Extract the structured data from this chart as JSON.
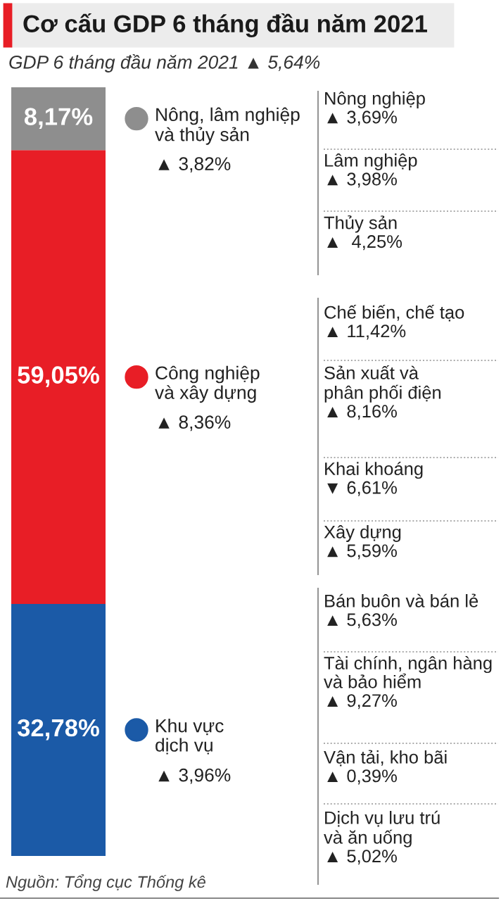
{
  "chart_data": {
    "type": "bar",
    "stacked": true,
    "title": "Cơ cấu GDP 6 tháng đầu năm 2021",
    "subtitle": "GDP 6 tháng đầu năm 2021 ▲ 5,64%",
    "categories": [
      null
    ],
    "legend": "right",
    "series": [
      {
        "name": "Khu vực\ndịch vụ",
        "color": "#1b5aa7",
        "values": [
          32.78
        ],
        "value_labels": [
          "32,78%"
        ]
      },
      {
        "name": "Công nghiệp\nvà xây dựng",
        "color": "#e81e26",
        "values": [
          59.05
        ],
        "value_labels": [
          "59,05%"
        ]
      },
      {
        "name": "Nông, lâm nghiệp\nvà thủy sản",
        "color": "#8e8e8e",
        "values": [
          8.17
        ],
        "value_labels": [
          "8,17%"
        ]
      }
    ],
    "annotations": [
      "▲ 3,82%",
      "▲ 8,36%",
      "▲ 3,96%",
      "Nông nghiệp\n▲ 3,69%",
      "Lâm nghiệp\n▲ 3,98%",
      "Thủy sản\n▲  4,25%",
      "Chế biến, chế tạo\n▲ 11,42%",
      "Sản xuất và\nphân phối điện\n▲ 8,16%",
      "Khai khoáng\n▼ 6,61%",
      "Xây dựng\n▲ 5,59%",
      "Bán buôn và bán lẻ\n▲ 5,63%",
      "Tài chính, ngân hàng\nvà bảo hiểm\n▲ 9,27%",
      "Vận tải, kho bãi\n▲ 0,39%",
      "Dịch vụ lưu trú\nvà ăn uống\n▲ 5,02%",
      "Nguồn: Tổng cục Thống kê"
    ]
  }
}
